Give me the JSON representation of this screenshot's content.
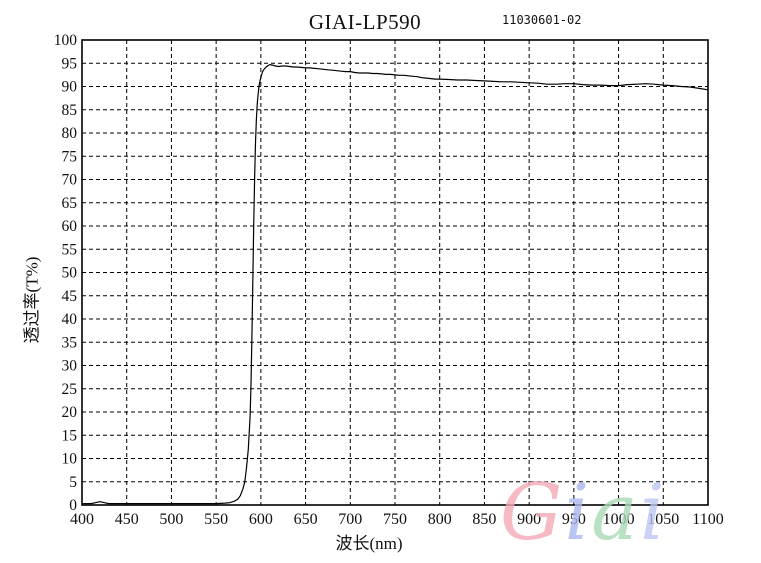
{
  "chart_data": {
    "type": "line",
    "title": "GIAI-LP590",
    "serial": "11030601-02",
    "xlabel": "波长(nm)",
    "ylabel": "透过率(T%)",
    "xlim": [
      400,
      1100
    ],
    "ylim": [
      0,
      100
    ],
    "x_ticks": [
      400,
      450,
      500,
      550,
      600,
      650,
      700,
      750,
      800,
      850,
      900,
      950,
      1000,
      1050,
      1100
    ],
    "y_ticks": [
      0,
      5,
      10,
      15,
      20,
      25,
      30,
      35,
      40,
      45,
      50,
      55,
      60,
      65,
      70,
      75,
      80,
      85,
      90,
      95,
      100
    ],
    "grid": "dashed",
    "legend": "none",
    "line_color": "#000000",
    "series": [
      {
        "name": "transmission",
        "points": [
          [
            400,
            0.3
          ],
          [
            410,
            0.3
          ],
          [
            415,
            0.5
          ],
          [
            420,
            0.7
          ],
          [
            425,
            0.5
          ],
          [
            430,
            0.3
          ],
          [
            440,
            0.3
          ],
          [
            450,
            0.3
          ],
          [
            460,
            0.3
          ],
          [
            470,
            0.3
          ],
          [
            480,
            0.3
          ],
          [
            490,
            0.3
          ],
          [
            500,
            0.3
          ],
          [
            510,
            0.3
          ],
          [
            520,
            0.3
          ],
          [
            530,
            0.3
          ],
          [
            540,
            0.3
          ],
          [
            550,
            0.3
          ],
          [
            560,
            0.4
          ],
          [
            565,
            0.5
          ],
          [
            570,
            0.8
          ],
          [
            574,
            1.2
          ],
          [
            577,
            2
          ],
          [
            580,
            3.5
          ],
          [
            582,
            5
          ],
          [
            584,
            8
          ],
          [
            586,
            12
          ],
          [
            588,
            19
          ],
          [
            589,
            26
          ],
          [
            590,
            36
          ],
          [
            591,
            48
          ],
          [
            592,
            60
          ],
          [
            593,
            70
          ],
          [
            594,
            78
          ],
          [
            595,
            83
          ],
          [
            596,
            86.5
          ],
          [
            597,
            88.5
          ],
          [
            598,
            90.2
          ],
          [
            599,
            91.2
          ],
          [
            600,
            92
          ],
          [
            602,
            93.2
          ],
          [
            604,
            93.8
          ],
          [
            606,
            94.2
          ],
          [
            608,
            94.5
          ],
          [
            610,
            94.7
          ],
          [
            613,
            94.6
          ],
          [
            616,
            94.4
          ],
          [
            620,
            94.3
          ],
          [
            624,
            94.4
          ],
          [
            628,
            94.4
          ],
          [
            632,
            94.3
          ],
          [
            636,
            94.2
          ],
          [
            640,
            94.2
          ],
          [
            645,
            94.1
          ],
          [
            650,
            94.0
          ],
          [
            655,
            94.0
          ],
          [
            660,
            93.9
          ],
          [
            665,
            93.8
          ],
          [
            670,
            93.7
          ],
          [
            675,
            93.6
          ],
          [
            680,
            93.5
          ],
          [
            685,
            93.4
          ],
          [
            690,
            93.3
          ],
          [
            695,
            93.2
          ],
          [
            700,
            93.2
          ],
          [
            705,
            93.0
          ],
          [
            710,
            92.9
          ],
          [
            715,
            92.9
          ],
          [
            720,
            92.9
          ],
          [
            725,
            92.8
          ],
          [
            730,
            92.8
          ],
          [
            735,
            92.7
          ],
          [
            740,
            92.6
          ],
          [
            745,
            92.6
          ],
          [
            750,
            92.5
          ],
          [
            755,
            92.4
          ],
          [
            760,
            92.4
          ],
          [
            765,
            92.3
          ],
          [
            770,
            92.2
          ],
          [
            775,
            92.1
          ],
          [
            780,
            91.9
          ],
          [
            785,
            91.8
          ],
          [
            790,
            91.7
          ],
          [
            795,
            91.6
          ],
          [
            800,
            91.6
          ],
          [
            810,
            91.5
          ],
          [
            820,
            91.4
          ],
          [
            830,
            91.4
          ],
          [
            840,
            91.3
          ],
          [
            850,
            91.2
          ],
          [
            860,
            91.1
          ],
          [
            870,
            91.0
          ],
          [
            880,
            91.0
          ],
          [
            890,
            90.9
          ],
          [
            900,
            90.8
          ],
          [
            910,
            90.7
          ],
          [
            920,
            90.5
          ],
          [
            930,
            90.5
          ],
          [
            940,
            90.6
          ],
          [
            950,
            90.6
          ],
          [
            960,
            90.4
          ],
          [
            970,
            90.3
          ],
          [
            980,
            90.3
          ],
          [
            990,
            90.2
          ],
          [
            1000,
            90.2
          ],
          [
            1010,
            90.4
          ],
          [
            1020,
            90.5
          ],
          [
            1030,
            90.6
          ],
          [
            1040,
            90.5
          ],
          [
            1050,
            90.3
          ],
          [
            1060,
            90.2
          ],
          [
            1070,
            90.0
          ],
          [
            1080,
            89.9
          ],
          [
            1090,
            89.6
          ],
          [
            1100,
            89.3
          ]
        ]
      }
    ]
  },
  "watermark": {
    "text": "Giai",
    "letters": [
      {
        "char": "G",
        "color": "#f3a9b6"
      },
      {
        "char": "i",
        "color": "#a9b9ee"
      },
      {
        "char": "a",
        "color": "#a9d9b6"
      },
      {
        "char": "i",
        "color": "#bcc6f2"
      }
    ]
  }
}
